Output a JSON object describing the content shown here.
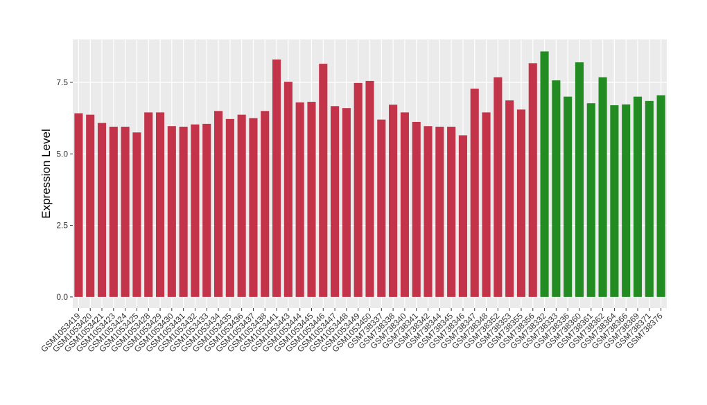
{
  "chart_data": {
    "type": "bar",
    "y_label": "Expression Level",
    "categories": [
      "GSM1053419",
      "GSM1053420",
      "GSM1053421",
      "GSM1053423",
      "GSM1053424",
      "GSM1053425",
      "GSM1053428",
      "GSM1053429",
      "GSM1053430",
      "GSM1053431",
      "GSM1053432",
      "GSM1053433",
      "GSM1053434",
      "GSM1053435",
      "GSM1053436",
      "GSM1053437",
      "GSM1053438",
      "GSM1053441",
      "GSM1053443",
      "GSM1053444",
      "GSM1053445",
      "GSM1053446",
      "GSM1053447",
      "GSM1053448",
      "GSM1053449",
      "GSM1053450",
      "GSM738337",
      "GSM738338",
      "GSM738340",
      "GSM738341",
      "GSM738342",
      "GSM738344",
      "GSM738345",
      "GSM738346",
      "GSM738347",
      "GSM738348",
      "GSM738352",
      "GSM738353",
      "GSM738355",
      "GSM738356",
      "GSM738332",
      "GSM738333",
      "GSM738336",
      "GSM738360",
      "GSM738361",
      "GSM738362",
      "GSM738364",
      "GSM738366",
      "GSM738369",
      "GSM738371",
      "GSM738376"
    ],
    "values": [
      6.42,
      6.37,
      6.08,
      5.95,
      5.95,
      5.75,
      6.45,
      6.45,
      5.97,
      5.95,
      6.03,
      6.05,
      6.5,
      6.22,
      6.37,
      6.25,
      6.5,
      8.3,
      7.52,
      6.8,
      6.82,
      8.15,
      6.67,
      6.6,
      7.48,
      7.55,
      6.2,
      6.72,
      6.45,
      6.12,
      5.97,
      5.95,
      5.95,
      5.65,
      7.28,
      6.45,
      7.68,
      6.87,
      6.55,
      8.17,
      8.58,
      7.57,
      7.0,
      8.2,
      6.77,
      7.68,
      6.7,
      6.73,
      7.0,
      6.85,
      7.05
    ],
    "colors": [
      "#c3334a",
      "#c3334a",
      "#c3334a",
      "#c3334a",
      "#c3334a",
      "#c3334a",
      "#c3334a",
      "#c3334a",
      "#c3334a",
      "#c3334a",
      "#c3334a",
      "#c3334a",
      "#c3334a",
      "#c3334a",
      "#c3334a",
      "#c3334a",
      "#c3334a",
      "#c3334a",
      "#c3334a",
      "#c3334a",
      "#c3334a",
      "#c3334a",
      "#c3334a",
      "#c3334a",
      "#c3334a",
      "#c3334a",
      "#c3334a",
      "#c3334a",
      "#c3334a",
      "#c3334a",
      "#c3334a",
      "#c3334a",
      "#c3334a",
      "#c3334a",
      "#c3334a",
      "#c3334a",
      "#c3334a",
      "#c3334a",
      "#c3334a",
      "#c3334a",
      "#228b22",
      "#228b22",
      "#228b22",
      "#228b22",
      "#228b22",
      "#228b22",
      "#228b22",
      "#228b22",
      "#228b22",
      "#228b22",
      "#228b22"
    ],
    "ylim": [
      -0.39,
      9.0
    ],
    "yticks": [
      {
        "value": 0,
        "label": "0.0"
      },
      2.5,
      {
        "value": 5,
        "label": "5.0"
      },
      7.5
    ],
    "grid": true
  }
}
